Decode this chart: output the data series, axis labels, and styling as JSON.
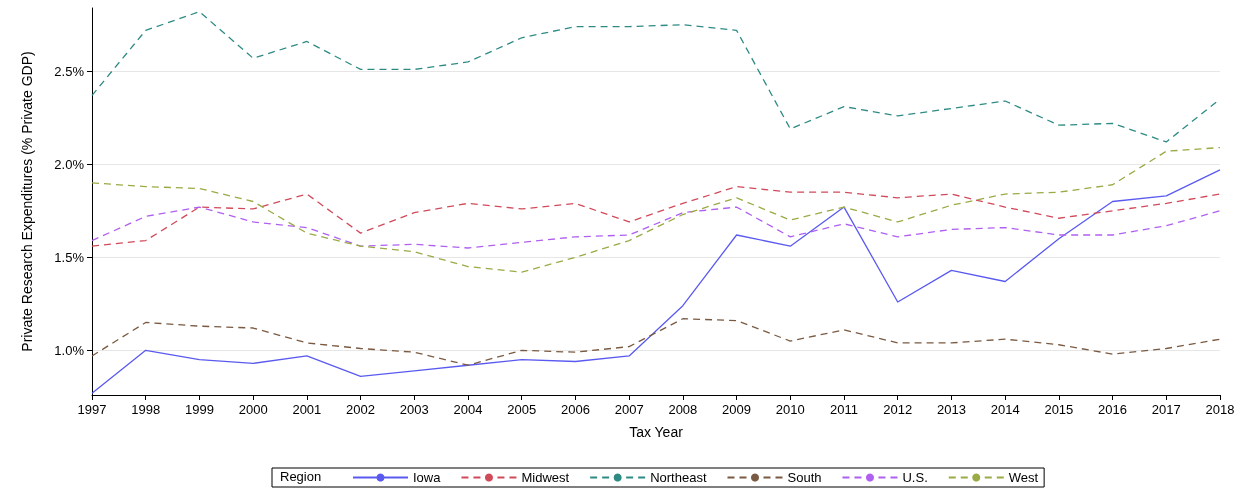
{
  "chart_data": {
    "type": "line",
    "xlabel": "Tax Year",
    "ylabel": "Private Research Expenditures (% Private GDP)",
    "legend_title": "Region",
    "legend": "bottom",
    "grid": "y",
    "marker": "none",
    "categories": [
      "1997",
      "1998",
      "1999",
      "2000",
      "2001",
      "2002",
      "2003",
      "2004",
      "2005",
      "2006",
      "2007",
      "2008",
      "2009",
      "2010",
      "2011",
      "2012",
      "2013",
      "2014",
      "2015",
      "2016",
      "2017",
      "2018"
    ],
    "ylim": [
      0.76,
      2.84
    ],
    "yticks": [
      {
        "value": 1.0,
        "label": "1.0%"
      },
      {
        "value": 1.5,
        "label": "1.5%"
      },
      {
        "value": 2.0,
        "label": "2.0%"
      },
      {
        "value": 2.5,
        "label": "2.5%"
      }
    ],
    "series": [
      {
        "name": "Iowa",
        "color": "#5a5af0",
        "line_style": "solid",
        "values": [
          0.77,
          1.0,
          0.95,
          0.93,
          0.97,
          0.86,
          0.89,
          0.92,
          0.95,
          0.94,
          0.97,
          1.24,
          1.62,
          1.56,
          1.77,
          1.26,
          1.43,
          1.37,
          1.6,
          1.8,
          1.83,
          1.97
        ]
      },
      {
        "name": "Midwest",
        "color": "#d04a5a",
        "line_style": "dashed",
        "values": [
          1.56,
          1.59,
          1.77,
          1.76,
          1.84,
          1.63,
          1.74,
          1.79,
          1.76,
          1.79,
          1.69,
          1.79,
          1.88,
          1.85,
          1.85,
          1.82,
          1.84,
          1.77,
          1.71,
          1.75,
          1.79,
          1.84
        ]
      },
      {
        "name": "Northeast",
        "color": "#2e8b84",
        "line_style": "dashed",
        "values": [
          2.37,
          2.72,
          2.82,
          2.57,
          2.66,
          2.51,
          2.51,
          2.55,
          2.68,
          2.74,
          2.74,
          2.75,
          2.72,
          2.19,
          2.31,
          2.26,
          2.3,
          2.34,
          2.21,
          2.22,
          2.12,
          2.35
        ]
      },
      {
        "name": "South",
        "color": "#7a5a42",
        "line_style": "dashed",
        "values": [
          0.97,
          1.15,
          1.13,
          1.12,
          1.04,
          1.01,
          0.99,
          0.92,
          1.0,
          0.99,
          1.02,
          1.17,
          1.16,
          1.05,
          1.11,
          1.04,
          1.04,
          1.06,
          1.03,
          0.98,
          1.01,
          1.06
        ]
      },
      {
        "name": "U.S.",
        "color": "#b060f0",
        "line_style": "dashed",
        "values": [
          1.59,
          1.72,
          1.77,
          1.69,
          1.66,
          1.56,
          1.57,
          1.55,
          1.58,
          1.61,
          1.62,
          1.74,
          1.77,
          1.61,
          1.68,
          1.61,
          1.65,
          1.66,
          1.62,
          1.62,
          1.67,
          1.75
        ]
      },
      {
        "name": "West",
        "color": "#9aaa44",
        "line_style": "dashed",
        "values": [
          1.9,
          1.88,
          1.87,
          1.8,
          1.63,
          1.56,
          1.53,
          1.45,
          1.42,
          1.5,
          1.59,
          1.73,
          1.82,
          1.7,
          1.77,
          1.69,
          1.78,
          1.84,
          1.85,
          1.89,
          2.07,
          2.09
        ]
      }
    ]
  }
}
